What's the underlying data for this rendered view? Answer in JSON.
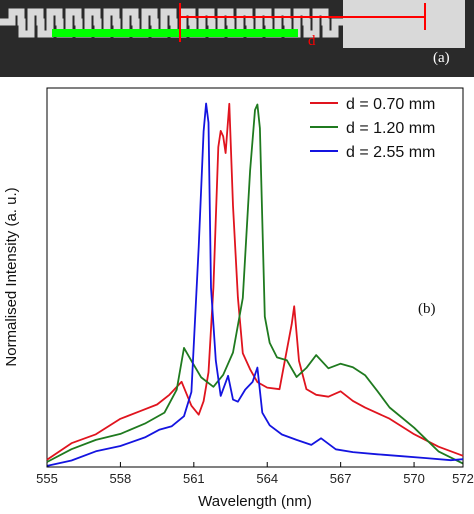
{
  "panel_a": {
    "label": "(a)",
    "marker_label": "d",
    "colors": {
      "bar": "#00ff00",
      "marker": "#ff0000",
      "background": "#2a2a2a",
      "waveguide": "#d9d9d9"
    }
  },
  "panel_b": {
    "label": "(b)"
  },
  "chart_data": {
    "type": "line",
    "title": "",
    "xlabel": "Wavelength (nm)",
    "ylabel": "Normalised Intensity  (a. u.)",
    "xlim": [
      555,
      572
    ],
    "ylim": [
      0,
      1
    ],
    "xticks": [
      555,
      558,
      561,
      564,
      567,
      570,
      572
    ],
    "grid": false,
    "legend": "top-right",
    "series": [
      {
        "name": "d = 0.70 mm",
        "color": "#e0141e",
        "x": [
          555,
          556,
          557,
          558,
          558.8,
          559.5,
          560,
          560.5,
          560.9,
          561.2,
          561.4,
          561.6,
          561.8,
          562,
          562.1,
          562.2,
          562.3,
          562.45,
          562.6,
          562.8,
          563,
          563.3,
          563.6,
          564,
          564.5,
          565,
          565.1,
          565.3,
          565.6,
          566,
          566.5,
          567,
          567.5,
          568,
          569,
          570,
          571,
          572
        ],
        "y": [
          0.02,
          0.06,
          0.08,
          0.12,
          0.14,
          0.16,
          0.19,
          0.23,
          0.17,
          0.15,
          0.19,
          0.27,
          0.5,
          0.88,
          0.92,
          0.9,
          0.85,
          0.98,
          0.7,
          0.45,
          0.3,
          0.26,
          0.23,
          0.22,
          0.22,
          0.4,
          0.45,
          0.3,
          0.22,
          0.2,
          0.19,
          0.2,
          0.17,
          0.15,
          0.12,
          0.08,
          0.05,
          0.03
        ]
      },
      {
        "name": "d = 1.20 mm",
        "color": "#1f7a1f",
        "x": [
          555,
          556,
          557,
          558,
          559,
          559.8,
          560.3,
          560.6,
          560.9,
          561.3,
          561.8,
          562.2,
          562.6,
          563,
          563.3,
          563.5,
          563.6,
          563.7,
          563.9,
          564.1,
          564.4,
          564.8,
          565.2,
          565.6,
          566,
          566.5,
          567,
          567.5,
          568,
          568.5,
          569,
          570,
          571,
          572
        ],
        "y": [
          0.01,
          0.05,
          0.08,
          0.1,
          0.13,
          0.16,
          0.22,
          0.33,
          0.29,
          0.24,
          0.21,
          0.24,
          0.3,
          0.45,
          0.8,
          0.97,
          0.99,
          0.93,
          0.42,
          0.35,
          0.31,
          0.3,
          0.25,
          0.27,
          0.3,
          0.26,
          0.27,
          0.26,
          0.24,
          0.2,
          0.16,
          0.11,
          0.05,
          0.02
        ]
      },
      {
        "name": "d = 2.55 mm",
        "color": "#1414e0",
        "x": [
          555,
          556,
          557,
          558,
          559,
          559.6,
          560.1,
          560.6,
          560.9,
          561.2,
          561.4,
          561.5,
          561.6,
          561.7,
          561.9,
          562.1,
          562.4,
          562.6,
          562.8,
          563.1,
          563.4,
          563.6,
          563.8,
          564.1,
          564.6,
          565.2,
          565.8,
          566.2,
          566.8,
          567.5,
          568.5,
          569.5,
          570.5,
          571.5,
          572
        ],
        "y": [
          0.01,
          0.02,
          0.04,
          0.05,
          0.07,
          0.09,
          0.1,
          0.13,
          0.2,
          0.6,
          0.92,
          1.0,
          0.95,
          0.5,
          0.3,
          0.2,
          0.25,
          0.18,
          0.17,
          0.2,
          0.22,
          0.26,
          0.14,
          0.11,
          0.09,
          0.08,
          0.07,
          0.09,
          0.06,
          0.05,
          0.04,
          0.03,
          0.02,
          0.01,
          0.01
        ]
      }
    ]
  }
}
